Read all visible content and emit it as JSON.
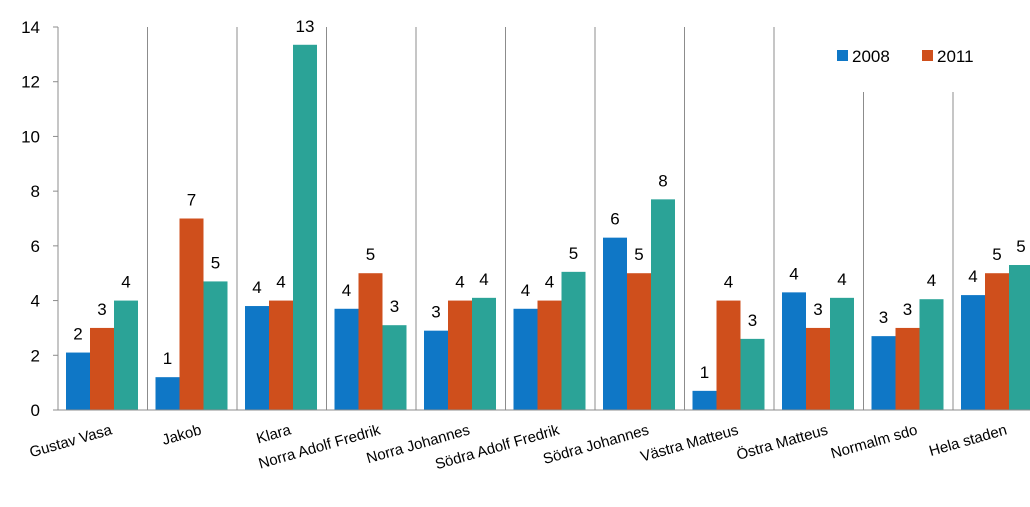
{
  "chart_data": {
    "type": "bar",
    "categories": [
      "Gustav Vasa",
      "Jakob",
      "Klara",
      "Norra Adolf Fredrik",
      "Norra Johannes",
      "Södra Adolf Fredrik",
      "Södra Johannes",
      "Västra Matteus",
      "Östra Matteus",
      "Normalm sdo",
      "Hela staden"
    ],
    "series": [
      {
        "name": "2008",
        "color": "#0f77c6",
        "values": [
          2.1,
          1.2,
          3.8,
          3.7,
          2.9,
          3.7,
          6.3,
          0.7,
          4.3,
          2.7,
          4.2
        ],
        "labels": [
          "2",
          "1",
          "4",
          "4",
          "3",
          "4",
          "6",
          "1",
          "4",
          "3",
          "4"
        ]
      },
      {
        "name": "2011",
        "color": "#cf4f1c",
        "values": [
          3.0,
          7.0,
          4.0,
          5.0,
          4.0,
          4.0,
          5.0,
          4.0,
          3.0,
          3.0,
          5.0
        ],
        "labels": [
          "3",
          "7",
          "4",
          "5",
          "4",
          "4",
          "5",
          "4",
          "3",
          "3",
          "5"
        ]
      },
      {
        "color": "#2ba397",
        "values": [
          4.0,
          4.7,
          13.35,
          3.1,
          4.1,
          5.05,
          7.7,
          2.6,
          4.1,
          4.05,
          5.3
        ],
        "labels": [
          "4",
          "5",
          "13",
          "3",
          "4",
          "5",
          "8",
          "3",
          "4",
          "4",
          "5"
        ]
      }
    ],
    "ylim": [
      0,
      14
    ],
    "yticks": [
      0,
      2,
      4,
      6,
      8,
      10,
      12,
      14
    ],
    "grid": "vertical",
    "legend": "top-right"
  }
}
